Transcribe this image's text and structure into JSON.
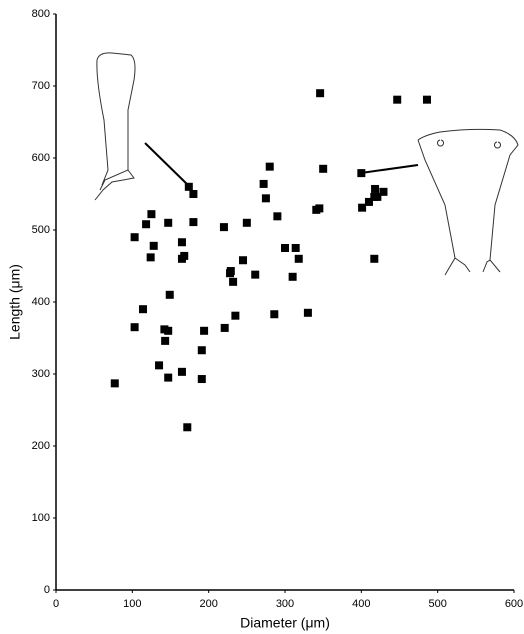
{
  "chart_data": {
    "type": "scatter",
    "x_label": "Diameter (μm)",
    "y_label": "Length (μm)",
    "x": [
      77,
      103,
      103,
      114,
      118,
      125,
      124,
      128,
      135,
      142,
      143,
      147,
      147,
      149,
      147,
      165,
      168,
      165,
      165,
      172,
      174,
      180,
      180,
      191,
      191,
      194,
      220,
      221,
      228,
      229,
      232,
      235,
      245,
      250,
      261,
      272,
      275,
      280,
      286,
      290,
      300,
      310,
      314,
      318,
      330,
      341,
      345,
      346,
      350,
      400,
      401,
      410,
      417,
      417,
      418,
      421,
      429,
      447,
      486
    ],
    "y": [
      287,
      490,
      365,
      390,
      508,
      522,
      462,
      478,
      312,
      362,
      346,
      360,
      295,
      410,
      510,
      483,
      464,
      460,
      303,
      226,
      560,
      550,
      511,
      333,
      293,
      360,
      504,
      364,
      440,
      443,
      428,
      381,
      458,
      510,
      438,
      564,
      544,
      588,
      383,
      519,
      475,
      435,
      475,
      460,
      385,
      528,
      530,
      690,
      585,
      579,
      531,
      539,
      546,
      460,
      557,
      546,
      553,
      681,
      681
    ],
    "color": "#000000",
    "xlim": [
      0,
      600
    ],
    "ylim": [
      0,
      800
    ],
    "xticks": [
      0,
      100,
      200,
      300,
      400,
      500,
      600
    ],
    "yticks": [
      0,
      100,
      200,
      300,
      400,
      500,
      600,
      700,
      800
    ],
    "grid": false
  }
}
